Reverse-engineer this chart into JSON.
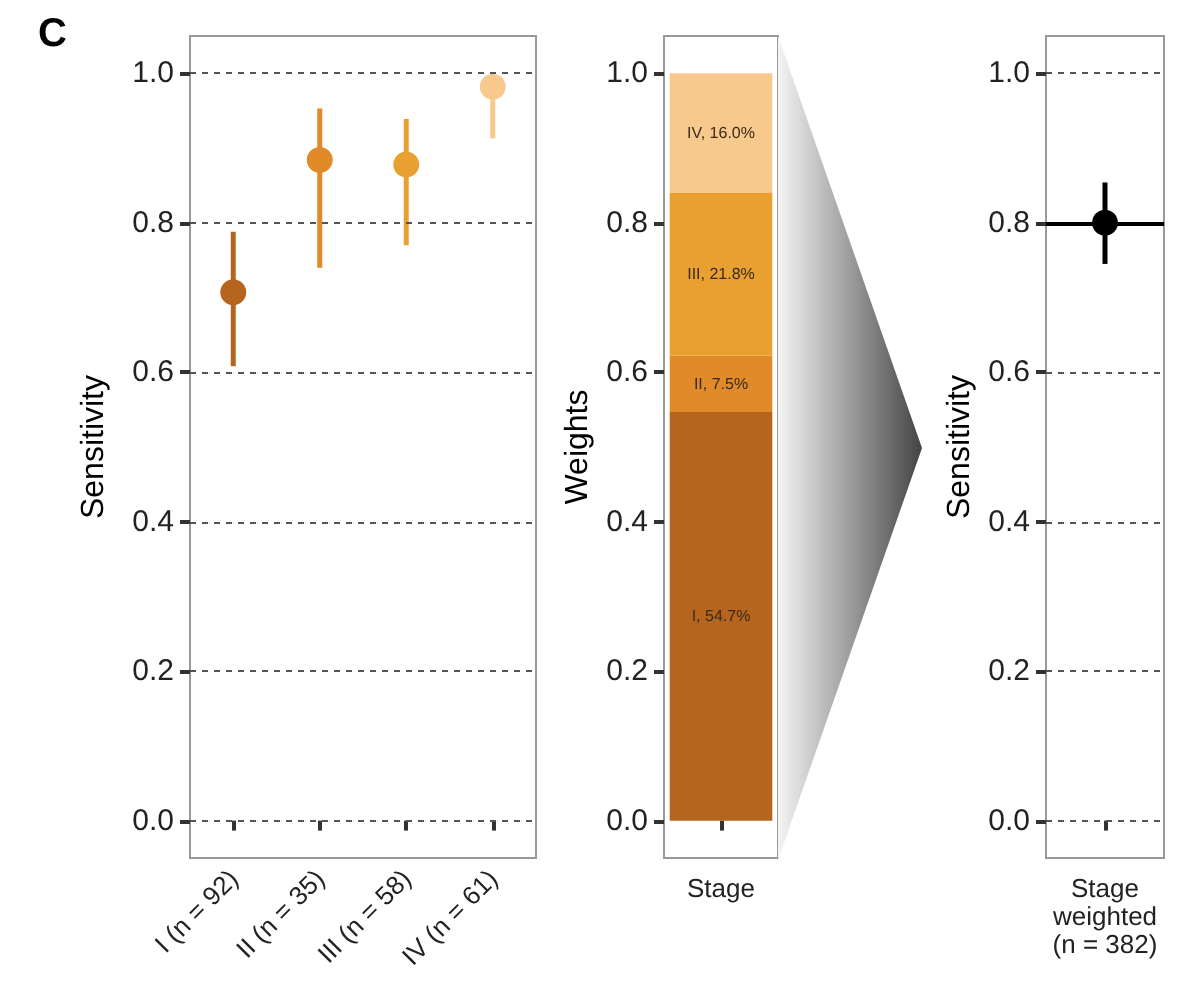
{
  "chart_data": [
    {
      "type": "scatter",
      "title": "C",
      "ylabel": "Sensitivity",
      "categories": [
        "I (n = 92)",
        "II (n = 35)",
        "III (n = 58)",
        "IV (n = 61)"
      ],
      "values": [
        0.707,
        0.884,
        0.878,
        0.982
      ],
      "colors": [
        "#b5651d",
        "#e08a2a",
        "#e8a030",
        "#f8c98d"
      ],
      "errors": [
        [
          0.608,
          0.788
        ],
        [
          0.74,
          0.953
        ],
        [
          0.77,
          0.939
        ],
        [
          0.913,
          1.0
        ]
      ],
      "ylim": [
        -0.05,
        1.05
      ],
      "yticks": [
        {
          "value": 0,
          "label": "0.0"
        },
        {
          "value": 0.2,
          "label": "0.2"
        },
        {
          "value": 0.4,
          "label": "0.4"
        },
        {
          "value": 0.6,
          "label": "0.6"
        },
        {
          "value": 0.8,
          "label": "0.8"
        },
        {
          "value": 1,
          "label": "1.0"
        }
      ],
      "grid": "y",
      "marker": "circle"
    },
    {
      "type": "bar",
      "stacked": true,
      "ylabel": "Weights",
      "categories": [
        "Stage"
      ],
      "series": [
        {
          "color": "#b5651d",
          "values": [
            0.547
          ],
          "value_labels": [
            "I, 54.7%"
          ]
        },
        {
          "color": "#e08a2a",
          "values": [
            0.075
          ],
          "value_labels": [
            "II, 7.5%"
          ]
        },
        {
          "color": "#e8a030",
          "values": [
            0.218
          ],
          "value_labels": [
            "III, 21.8%"
          ]
        },
        {
          "color": "#f8c98d",
          "values": [
            0.16
          ],
          "value_labels": [
            "IV, 16.0%"
          ]
        }
      ],
      "ylim": [
        -0.05,
        1.05
      ],
      "yticks": [
        {
          "value": 0,
          "label": "0.0"
        },
        {
          "value": 0.2,
          "label": "0.2"
        },
        {
          "value": 0.4,
          "label": "0.4"
        },
        {
          "value": 0.6,
          "label": "0.6"
        },
        {
          "value": 0.8,
          "label": "0.8"
        },
        {
          "value": 1,
          "label": "1.0"
        }
      ],
      "grid": false
    },
    {
      "type": "scatter",
      "ylabel": "Sensitivity",
      "categories": [
        "Stage\nweighted\n(n = 382)"
      ],
      "values": [
        0.8
      ],
      "colors": [
        "#000000"
      ],
      "errors": [
        [
          0.745,
          0.854
        ]
      ],
      "ylim": [
        -0.05,
        1.05
      ],
      "yticks": [
        {
          "value": 0,
          "label": "0.0"
        },
        {
          "value": 0.2,
          "label": "0.2"
        },
        {
          "value": 0.4,
          "label": "0.4"
        },
        {
          "value": 0.6,
          "label": "0.6"
        },
        {
          "value": 0.8,
          "label": "0.8"
        },
        {
          "value": 1,
          "label": "1.0"
        }
      ],
      "grid": "y",
      "marker": "circle",
      "ref_lines": [
        {
          "axis": "y",
          "value": 0.8,
          "color": "#000000"
        }
      ]
    }
  ]
}
